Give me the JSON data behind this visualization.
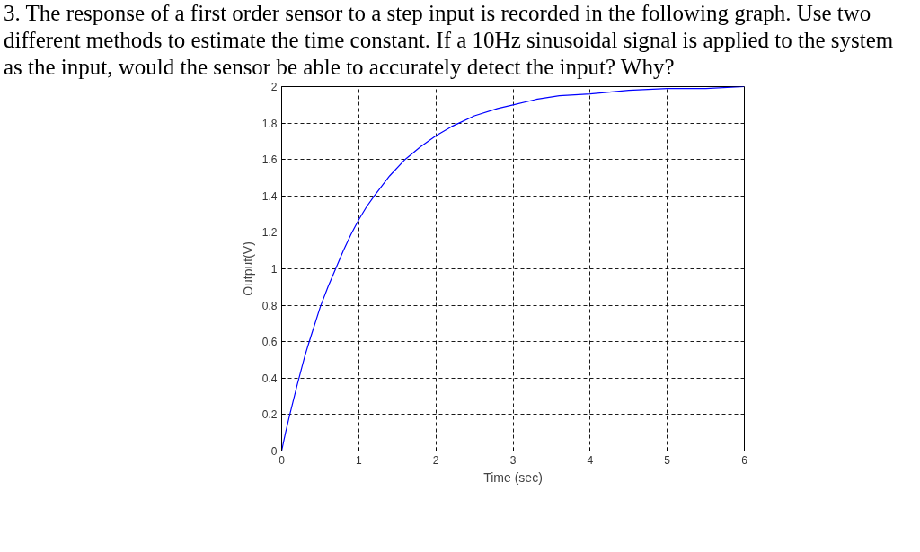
{
  "chart_data": {
    "type": "line",
    "title": "3. The response of a first order sensor to a step input is recorded in the following graph. Use two different methods to estimate the time constant. If a 10Hz sinusoidal signal is applied to the system as the input, would the sensor be able to accurately detect the input? Why?",
    "xlabel": "Time (sec)",
    "ylabel": "Output(V)",
    "x": [
      0,
      0.05,
      0.1,
      0.2,
      0.3,
      0.35,
      0.5,
      0.6,
      0.7,
      0.8,
      0.9,
      1.0,
      1.1,
      1.2,
      1.4,
      1.6,
      1.8,
      2.0,
      2.2,
      2.5,
      2.8,
      3.0,
      3.3,
      3.6,
      4.0,
      4.5,
      5.0,
      5.5,
      6.0
    ],
    "series": [
      {
        "color": "#0000ff",
        "values": [
          0,
          0.1,
          0.19,
          0.36,
          0.52,
          0.59,
          0.79,
          0.9,
          1.0,
          1.1,
          1.19,
          1.27,
          1.34,
          1.4,
          1.51,
          1.6,
          1.67,
          1.73,
          1.78,
          1.84,
          1.88,
          1.9,
          1.93,
          1.95,
          1.96,
          1.98,
          1.99,
          1.99,
          2.0
        ]
      }
    ],
    "xlim": [
      0,
      6
    ],
    "ylim": [
      0,
      2
    ],
    "xticks": [
      0,
      1,
      2,
      3,
      4,
      5,
      6
    ],
    "yticks": [
      0,
      0.2,
      0.4,
      0.6,
      0.8,
      1,
      1.2,
      1.4,
      1.6,
      1.8,
      2
    ],
    "grid": true,
    "line_style": "solid"
  }
}
